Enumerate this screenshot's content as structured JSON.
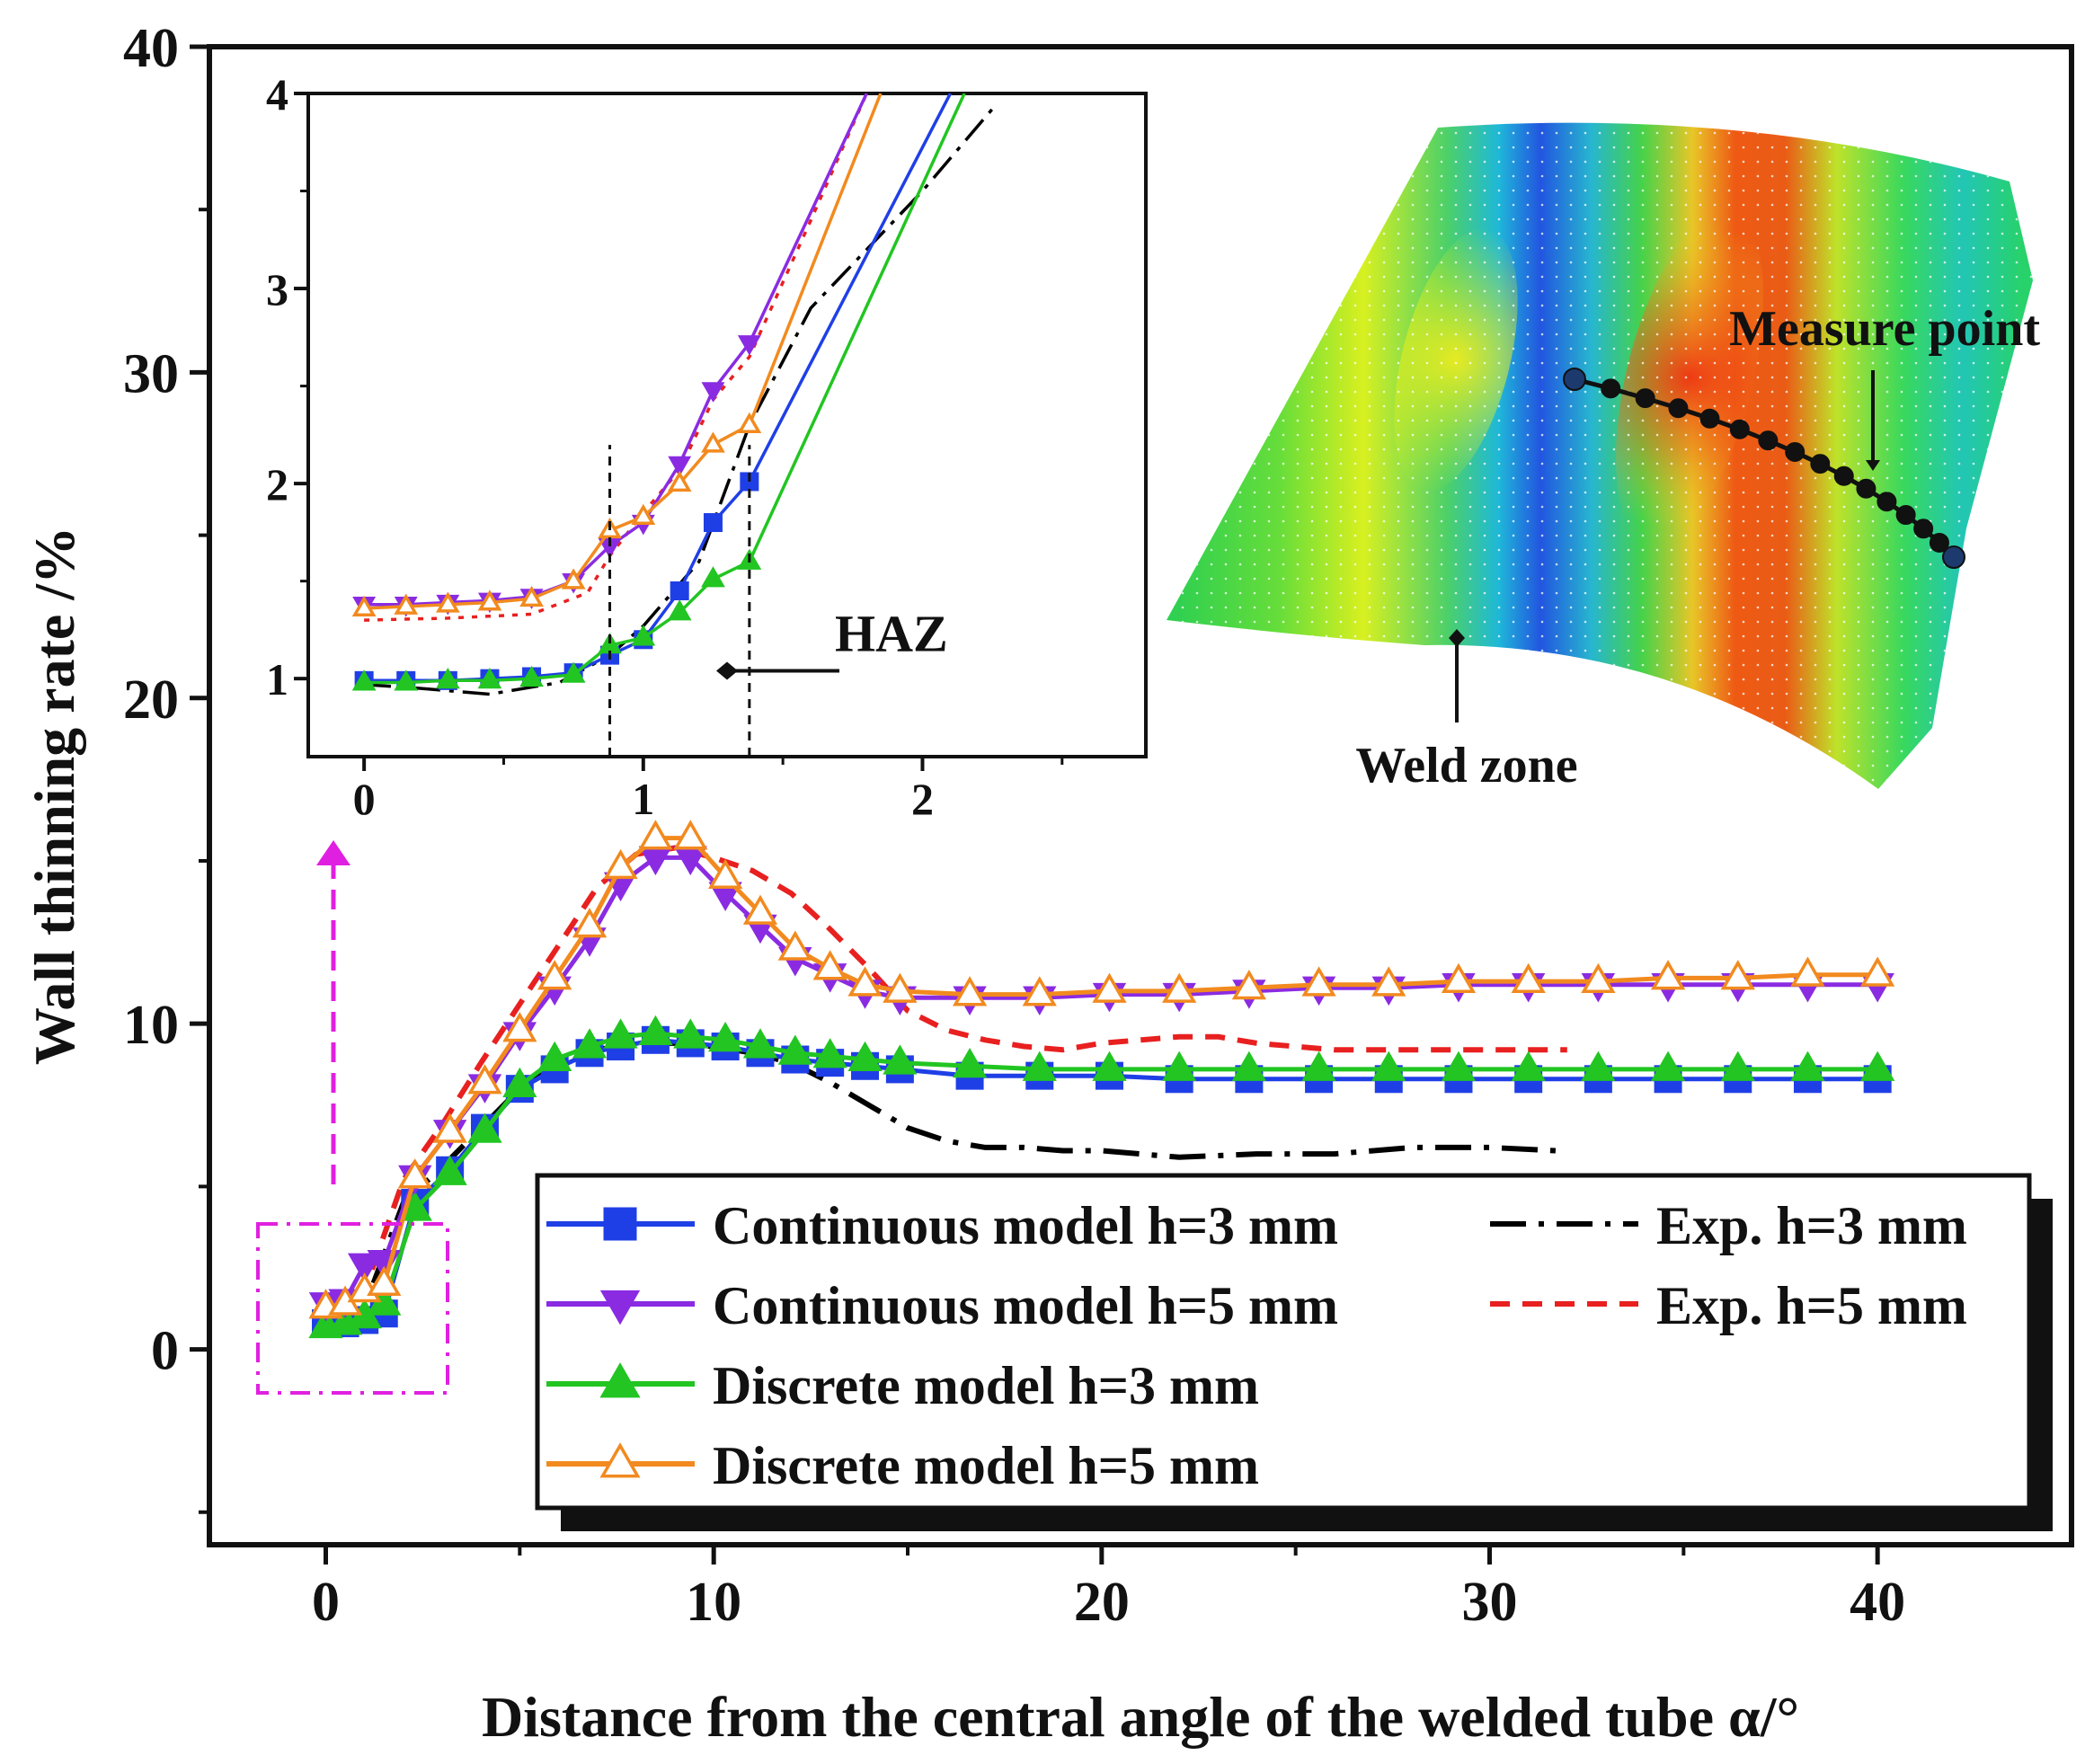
{
  "chart_data": [
    {
      "type": "line",
      "xlabel": "Distance from the central angle of the welded tube α/°",
      "ylabel": "Wall thinning rate /%",
      "xlim": [
        -3,
        45
      ],
      "ylim": [
        -6,
        40
      ],
      "xticks": [
        0,
        10,
        20,
        30,
        40
      ],
      "yticks": [
        0,
        10,
        20,
        30,
        40
      ],
      "legend_position": "bottom-right",
      "series": [
        {
          "name": "Continuous model h=3 mm",
          "color": "#1f3fe6",
          "marker": "square",
          "marker_fill": "filled",
          "dash": "solid",
          "x": [
            0,
            0.5,
            1.0,
            1.5,
            2.3,
            3.2,
            4.1,
            5.0,
            5.9,
            6.8,
            7.6,
            8.5,
            9.4,
            10.3,
            11.2,
            12.1,
            13.0,
            13.9,
            14.8,
            16.6,
            18.4,
            20.2,
            22.0,
            23.8,
            25.6,
            27.4,
            29.2,
            31.0,
            32.8,
            34.6,
            36.4,
            38.2,
            40.0
          ],
          "y": [
            0.8,
            0.8,
            0.9,
            1.1,
            4.5,
            5.5,
            6.8,
            8.0,
            8.6,
            9.1,
            9.3,
            9.5,
            9.4,
            9.3,
            9.1,
            8.9,
            8.8,
            8.7,
            8.6,
            8.4,
            8.4,
            8.4,
            8.3,
            8.3,
            8.3,
            8.3,
            8.3,
            8.3,
            8.3,
            8.3,
            8.3,
            8.3,
            8.3
          ]
        },
        {
          "name": "Continuous model h=5 mm",
          "color": "#8a2be2",
          "marker": "triangle-down",
          "marker_fill": "filled",
          "dash": "solid",
          "x": [
            0,
            0.5,
            1.0,
            1.5,
            2.3,
            3.2,
            4.1,
            5.0,
            5.9,
            6.8,
            7.6,
            8.5,
            9.4,
            10.3,
            11.2,
            12.1,
            13.0,
            13.9,
            14.8,
            16.6,
            18.4,
            20.2,
            22.0,
            23.8,
            25.6,
            27.4,
            29.2,
            31.0,
            32.8,
            34.6,
            36.4,
            38.2,
            40.0
          ],
          "y": [
            1.4,
            1.5,
            2.6,
            2.7,
            5.3,
            6.7,
            8.1,
            9.7,
            11.1,
            12.6,
            14.3,
            15.1,
            15.1,
            14.0,
            13.0,
            12.0,
            11.5,
            11.0,
            10.8,
            10.8,
            10.8,
            10.9,
            10.9,
            11.0,
            11.1,
            11.1,
            11.2,
            11.2,
            11.2,
            11.2,
            11.2,
            11.2,
            11.2
          ]
        },
        {
          "name": "Discrete model h=3 mm",
          "color": "#22c522",
          "marker": "triangle-up",
          "marker_fill": "filled",
          "dash": "solid",
          "x": [
            0,
            0.5,
            1.0,
            1.5,
            2.3,
            3.2,
            4.1,
            5.0,
            5.9,
            6.8,
            7.6,
            8.5,
            9.4,
            10.3,
            11.2,
            12.1,
            13.0,
            13.9,
            14.8,
            16.6,
            18.4,
            20.2,
            22.0,
            23.8,
            25.6,
            27.4,
            29.2,
            31.0,
            32.8,
            34.6,
            36.4,
            38.2,
            40.0
          ],
          "y": [
            0.7,
            0.8,
            1.0,
            1.4,
            4.3,
            5.4,
            6.7,
            8.1,
            8.9,
            9.3,
            9.6,
            9.7,
            9.6,
            9.5,
            9.3,
            9.1,
            9.0,
            8.9,
            8.8,
            8.7,
            8.6,
            8.6,
            8.6,
            8.6,
            8.6,
            8.6,
            8.6,
            8.6,
            8.6,
            8.6,
            8.6,
            8.6,
            8.6
          ]
        },
        {
          "name": "Discrete model h=5 mm",
          "color": "#f28a1f",
          "marker": "triangle-up",
          "marker_fill": "hollow",
          "dash": "solid",
          "x": [
            0,
            0.5,
            1.0,
            1.5,
            2.3,
            3.2,
            4.1,
            5.0,
            5.9,
            6.8,
            7.6,
            8.5,
            9.4,
            10.3,
            11.2,
            12.1,
            13.0,
            13.9,
            14.8,
            16.6,
            18.4,
            20.2,
            22.0,
            23.8,
            25.6,
            27.4,
            29.2,
            31.0,
            32.8,
            34.6,
            36.4,
            38.2,
            40.0
          ],
          "y": [
            1.3,
            1.4,
            1.8,
            2.0,
            5.3,
            6.7,
            8.2,
            9.8,
            11.4,
            13.0,
            14.8,
            15.7,
            15.7,
            14.5,
            13.4,
            12.3,
            11.7,
            11.2,
            11.0,
            10.9,
            10.9,
            11.0,
            11.0,
            11.1,
            11.2,
            11.2,
            11.3,
            11.3,
            11.3,
            11.4,
            11.4,
            11.5,
            11.5
          ]
        },
        {
          "name": "Exp. h=3 mm",
          "color": "#000000",
          "marker": "none",
          "dash": "dash-dot",
          "x": [
            0,
            1,
            2,
            3,
            4,
            5,
            6,
            7,
            8,
            9,
            10,
            11,
            12,
            13,
            14,
            15,
            16,
            17,
            18,
            19,
            20,
            22,
            24,
            26,
            28,
            30,
            31.7
          ],
          "y": [
            0.9,
            1.3,
            4.5,
            5.6,
            6.8,
            8.0,
            8.8,
            9.2,
            9.4,
            9.4,
            9.3,
            9.1,
            8.8,
            8.2,
            7.5,
            6.8,
            6.4,
            6.2,
            6.2,
            6.1,
            6.1,
            5.9,
            6.0,
            6.0,
            6.2,
            6.2,
            6.1
          ]
        },
        {
          "name": "Exp. h=5 mm",
          "color": "#e82020",
          "marker": "none",
          "dash": "dashed",
          "x": [
            0,
            1,
            2,
            3,
            4,
            5,
            6,
            7,
            8,
            9,
            10,
            11,
            12,
            13,
            14,
            15,
            16,
            17,
            18,
            19,
            20,
            21,
            22,
            23,
            24,
            26,
            28,
            30,
            32
          ],
          "y": [
            1.3,
            1.8,
            5.2,
            6.9,
            8.8,
            10.6,
            12.4,
            14.2,
            15.2,
            15.4,
            15.1,
            14.7,
            14.0,
            12.9,
            11.7,
            10.4,
            9.8,
            9.5,
            9.3,
            9.2,
            9.4,
            9.5,
            9.6,
            9.6,
            9.4,
            9.2,
            9.2,
            9.2,
            9.2
          ]
        }
      ]
    },
    {
      "type": "line",
      "subtitle": "inset",
      "xlim": [
        -0.2,
        2.8
      ],
      "ylim": [
        0.6,
        4.0
      ],
      "xticks": [
        0,
        1,
        2
      ],
      "yticks": [
        1,
        2,
        3,
        4
      ],
      "annotations": [
        {
          "text": "HAZ",
          "x": 1.3,
          "y": 1.04
        },
        {
          "type": "vline",
          "x": 0.88
        },
        {
          "type": "vline",
          "x": 1.38
        }
      ],
      "series": [
        {
          "name": "Continuous model h=3 mm",
          "color": "#1f3fe6",
          "marker": "square",
          "x": [
            0,
            0.15,
            0.3,
            0.45,
            0.6,
            0.75,
            0.88,
            1.0,
            1.13,
            1.25,
            1.38,
            2.1
          ],
          "y": [
            0.99,
            0.99,
            0.99,
            1.0,
            1.01,
            1.03,
            1.12,
            1.2,
            1.45,
            1.8,
            2.01,
            4.0
          ]
        },
        {
          "name": "Continuous model h=5 mm",
          "color": "#8a2be2",
          "marker": "triangle-down",
          "x": [
            0,
            0.15,
            0.3,
            0.45,
            0.6,
            0.75,
            0.88,
            1.0,
            1.13,
            1.25,
            1.38,
            1.8
          ],
          "y": [
            1.38,
            1.38,
            1.39,
            1.4,
            1.42,
            1.5,
            1.68,
            1.8,
            2.1,
            2.48,
            2.72,
            4.0
          ]
        },
        {
          "name": "Discrete model h=3 mm",
          "color": "#22c522",
          "marker": "triangle-up",
          "x": [
            0,
            0.15,
            0.3,
            0.45,
            0.6,
            0.75,
            0.88,
            1.0,
            1.13,
            1.25,
            1.38,
            2.15
          ],
          "y": [
            0.98,
            0.98,
            0.99,
            0.99,
            1.0,
            1.02,
            1.17,
            1.21,
            1.34,
            1.51,
            1.6,
            4.0
          ]
        },
        {
          "name": "Discrete model h=5 mm",
          "color": "#f28a1f",
          "marker": "triangle-up-hollow",
          "x": [
            0,
            0.15,
            0.3,
            0.45,
            0.6,
            0.75,
            0.88,
            1.0,
            1.13,
            1.25,
            1.38,
            1.85
          ],
          "y": [
            1.36,
            1.37,
            1.38,
            1.39,
            1.41,
            1.5,
            1.76,
            1.83,
            2.0,
            2.2,
            2.3,
            4.0
          ]
        },
        {
          "name": "Exp. h=3 mm",
          "color": "#000000",
          "marker": "none",
          "x": [
            0,
            0.2,
            0.45,
            0.7,
            0.88,
            1.0,
            1.2,
            1.38,
            1.6,
            2.0,
            2.25
          ],
          "y": [
            0.97,
            0.95,
            0.92,
            0.98,
            1.12,
            1.27,
            1.6,
            2.3,
            2.9,
            3.5,
            3.92
          ]
        },
        {
          "name": "Exp. h=5 mm",
          "color": "#e82020",
          "marker": "none",
          "x": [
            0,
            0.3,
            0.6,
            0.8,
            0.88,
            1.0,
            1.13,
            1.25,
            1.38,
            1.6,
            1.8
          ],
          "y": [
            1.3,
            1.31,
            1.33,
            1.44,
            1.63,
            1.85,
            2.07,
            2.43,
            2.65,
            3.35,
            4.0
          ]
        }
      ]
    }
  ],
  "contour_image": {
    "labels": {
      "measure": "Measure point",
      "weld": "Weld zone"
    }
  }
}
